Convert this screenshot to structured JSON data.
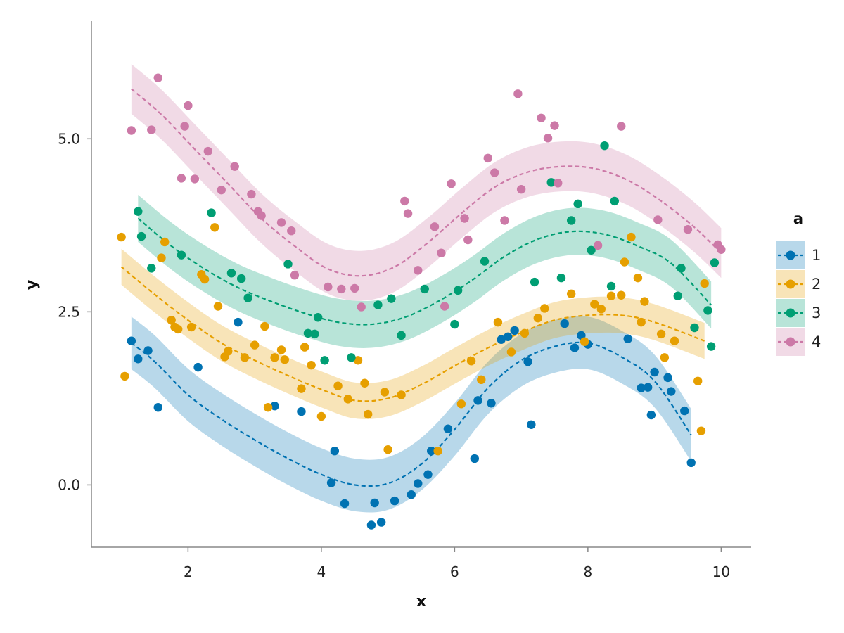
{
  "chart_data": {
    "type": "scatter",
    "xlabel": "x",
    "ylabel": "y",
    "xlim": [
      0.55,
      10.45
    ],
    "ylim": [
      -0.9,
      6.7
    ],
    "x_ticks": [
      2,
      4,
      6,
      8,
      10
    ],
    "x_tick_labels": [
      "2",
      "4",
      "6",
      "8",
      "10"
    ],
    "y_ticks": [
      0.0,
      2.5,
      5.0
    ],
    "y_tick_labels": [
      "0.0",
      "2.5",
      "5.0"
    ],
    "grid": false,
    "legend": {
      "title": "a",
      "position": "right"
    },
    "series": [
      {
        "name": "1",
        "color": "#0072B2",
        "points": [
          [
            1.15,
            2.08
          ],
          [
            1.25,
            1.82
          ],
          [
            1.4,
            1.94
          ],
          [
            1.55,
            1.12
          ],
          [
            2.15,
            1.7
          ],
          [
            2.75,
            2.35
          ],
          [
            3.3,
            1.14
          ],
          [
            3.7,
            1.06
          ],
          [
            4.15,
            0.03
          ],
          [
            4.2,
            0.49
          ],
          [
            4.35,
            -0.27
          ],
          [
            4.75,
            -0.58
          ],
          [
            4.8,
            -0.26
          ],
          [
            4.9,
            -0.54
          ],
          [
            5.1,
            -0.23
          ],
          [
            5.35,
            -0.14
          ],
          [
            5.45,
            0.02
          ],
          [
            5.6,
            0.15
          ],
          [
            5.65,
            0.49
          ],
          [
            5.9,
            0.81
          ],
          [
            6.3,
            0.38
          ],
          [
            6.35,
            1.22
          ],
          [
            6.55,
            1.18
          ],
          [
            6.7,
            2.1
          ],
          [
            6.8,
            2.14
          ],
          [
            6.9,
            2.23
          ],
          [
            7.1,
            1.78
          ],
          [
            7.15,
            0.87
          ],
          [
            7.65,
            2.33
          ],
          [
            7.8,
            1.98
          ],
          [
            7.9,
            2.16
          ],
          [
            8.0,
            2.03
          ],
          [
            8.6,
            2.11
          ],
          [
            8.8,
            1.4
          ],
          [
            8.9,
            1.41
          ],
          [
            8.95,
            1.01
          ],
          [
            9.0,
            1.63
          ],
          [
            9.2,
            1.55
          ],
          [
            9.25,
            1.35
          ],
          [
            9.45,
            1.07
          ],
          [
            9.55,
            0.32
          ]
        ],
        "fit": [
          [
            1.15,
            2.05
          ],
          [
            1.5,
            1.78
          ],
          [
            2.0,
            1.3
          ],
          [
            2.5,
            0.95
          ],
          [
            3.0,
            0.65
          ],
          [
            3.5,
            0.38
          ],
          [
            4.0,
            0.15
          ],
          [
            4.5,
            0.0
          ],
          [
            5.0,
            0.02
          ],
          [
            5.5,
            0.3
          ],
          [
            6.0,
            0.8
          ],
          [
            6.5,
            1.4
          ],
          [
            7.0,
            1.8
          ],
          [
            7.5,
            2.0
          ],
          [
            8.0,
            2.05
          ],
          [
            8.5,
            1.85
          ],
          [
            9.0,
            1.5
          ],
          [
            9.55,
            0.72
          ]
        ],
        "band_halfwidth": 0.38
      },
      {
        "name": "2",
        "color": "#E69F00",
        "points": [
          [
            1.0,
            3.58
          ],
          [
            1.05,
            1.57
          ],
          [
            1.65,
            3.51
          ],
          [
            1.6,
            3.28
          ],
          [
            1.75,
            2.38
          ],
          [
            1.8,
            2.28
          ],
          [
            1.85,
            2.25
          ],
          [
            2.05,
            2.28
          ],
          [
            2.2,
            3.04
          ],
          [
            2.25,
            2.97
          ],
          [
            2.4,
            3.72
          ],
          [
            2.45,
            2.58
          ],
          [
            2.55,
            1.85
          ],
          [
            2.6,
            1.93
          ],
          [
            2.85,
            1.84
          ],
          [
            3.0,
            2.02
          ],
          [
            3.15,
            2.29
          ],
          [
            3.2,
            1.12
          ],
          [
            3.3,
            1.84
          ],
          [
            3.4,
            1.95
          ],
          [
            3.45,
            1.81
          ],
          [
            3.7,
            1.39
          ],
          [
            3.75,
            1.99
          ],
          [
            3.85,
            1.73
          ],
          [
            4.0,
            0.99
          ],
          [
            4.25,
            1.43
          ],
          [
            4.4,
            1.24
          ],
          [
            4.55,
            1.8
          ],
          [
            4.65,
            1.47
          ],
          [
            4.7,
            1.02
          ],
          [
            4.95,
            1.34
          ],
          [
            5.0,
            0.51
          ],
          [
            5.2,
            1.3
          ],
          [
            5.75,
            0.49
          ],
          [
            6.1,
            1.17
          ],
          [
            6.25,
            1.79
          ],
          [
            6.4,
            1.52
          ],
          [
            6.65,
            2.35
          ],
          [
            6.85,
            1.92
          ],
          [
            7.05,
            2.19
          ],
          [
            7.25,
            2.41
          ],
          [
            7.35,
            2.55
          ],
          [
            7.75,
            2.76
          ],
          [
            7.95,
            2.07
          ],
          [
            8.1,
            2.61
          ],
          [
            8.2,
            2.54
          ],
          [
            8.35,
            2.73
          ],
          [
            8.5,
            2.74
          ],
          [
            8.55,
            3.22
          ],
          [
            8.65,
            3.58
          ],
          [
            8.75,
            2.99
          ],
          [
            8.8,
            2.35
          ],
          [
            8.85,
            2.65
          ],
          [
            9.1,
            2.18
          ],
          [
            9.15,
            1.84
          ],
          [
            9.3,
            2.08
          ],
          [
            9.65,
            1.5
          ],
          [
            9.7,
            0.78
          ],
          [
            9.75,
            2.91
          ]
        ],
        "fit": [
          [
            1.0,
            3.15
          ],
          [
            1.5,
            2.75
          ],
          [
            2.0,
            2.38
          ],
          [
            2.5,
            2.05
          ],
          [
            3.0,
            1.8
          ],
          [
            3.5,
            1.58
          ],
          [
            4.0,
            1.38
          ],
          [
            4.5,
            1.22
          ],
          [
            5.0,
            1.25
          ],
          [
            5.5,
            1.45
          ],
          [
            6.0,
            1.72
          ],
          [
            6.5,
            1.98
          ],
          [
            7.0,
            2.2
          ],
          [
            7.5,
            2.38
          ],
          [
            8.0,
            2.45
          ],
          [
            8.5,
            2.45
          ],
          [
            9.0,
            2.35
          ],
          [
            9.75,
            2.08
          ]
        ],
        "band_halfwidth": 0.26
      },
      {
        "name": "3",
        "color": "#009E73",
        "points": [
          [
            1.25,
            3.95
          ],
          [
            1.3,
            3.59
          ],
          [
            1.45,
            3.13
          ],
          [
            1.9,
            3.32
          ],
          [
            2.35,
            3.93
          ],
          [
            2.65,
            3.06
          ],
          [
            2.8,
            2.98
          ],
          [
            2.9,
            2.7
          ],
          [
            3.5,
            3.19
          ],
          [
            3.8,
            2.19
          ],
          [
            3.9,
            2.18
          ],
          [
            3.95,
            2.42
          ],
          [
            4.05,
            1.8
          ],
          [
            4.45,
            1.84
          ],
          [
            4.85,
            2.6
          ],
          [
            5.05,
            2.69
          ],
          [
            5.2,
            2.16
          ],
          [
            5.55,
            2.83
          ],
          [
            6.0,
            2.32
          ],
          [
            6.05,
            2.81
          ],
          [
            6.45,
            3.23
          ],
          [
            7.2,
            2.93
          ],
          [
            7.45,
            4.37
          ],
          [
            7.6,
            2.99
          ],
          [
            7.75,
            3.82
          ],
          [
            7.85,
            4.06
          ],
          [
            8.05,
            3.39
          ],
          [
            8.25,
            4.9
          ],
          [
            8.35,
            2.87
          ],
          [
            8.4,
            4.1
          ],
          [
            9.35,
            2.73
          ],
          [
            9.4,
            3.13
          ],
          [
            9.6,
            2.27
          ],
          [
            9.8,
            2.52
          ],
          [
            9.85,
            2.0
          ],
          [
            9.9,
            3.21
          ]
        ],
        "fit": [
          [
            1.25,
            3.85
          ],
          [
            1.75,
            3.45
          ],
          [
            2.25,
            3.12
          ],
          [
            2.75,
            2.85
          ],
          [
            3.25,
            2.65
          ],
          [
            3.75,
            2.48
          ],
          [
            4.25,
            2.35
          ],
          [
            4.75,
            2.32
          ],
          [
            5.25,
            2.42
          ],
          [
            5.75,
            2.65
          ],
          [
            6.25,
            2.95
          ],
          [
            6.75,
            3.3
          ],
          [
            7.25,
            3.55
          ],
          [
            7.75,
            3.66
          ],
          [
            8.25,
            3.62
          ],
          [
            8.75,
            3.45
          ],
          [
            9.25,
            3.2
          ],
          [
            9.85,
            2.6
          ]
        ],
        "band_halfwidth": 0.34
      },
      {
        "name": "4",
        "color": "#CC79A7",
        "points": [
          [
            1.15,
            5.12
          ],
          [
            1.55,
            5.88
          ],
          [
            1.45,
            5.13
          ],
          [
            1.9,
            4.43
          ],
          [
            1.95,
            5.18
          ],
          [
            2.0,
            5.48
          ],
          [
            2.1,
            4.42
          ],
          [
            2.3,
            4.82
          ],
          [
            2.5,
            4.26
          ],
          [
            2.7,
            4.6
          ],
          [
            2.95,
            4.2
          ],
          [
            3.05,
            3.95
          ],
          [
            3.1,
            3.89
          ],
          [
            3.4,
            3.79
          ],
          [
            3.55,
            3.67
          ],
          [
            3.6,
            3.03
          ],
          [
            4.1,
            2.86
          ],
          [
            4.3,
            2.83
          ],
          [
            4.5,
            2.84
          ],
          [
            4.6,
            2.57
          ],
          [
            5.25,
            4.1
          ],
          [
            5.3,
            3.92
          ],
          [
            5.45,
            3.1
          ],
          [
            5.7,
            3.73
          ],
          [
            5.8,
            3.35
          ],
          [
            5.85,
            2.58
          ],
          [
            5.95,
            4.35
          ],
          [
            6.15,
            3.85
          ],
          [
            6.2,
            3.54
          ],
          [
            6.5,
            4.72
          ],
          [
            6.6,
            4.51
          ],
          [
            6.75,
            3.82
          ],
          [
            6.95,
            5.65
          ],
          [
            7.0,
            4.27
          ],
          [
            7.3,
            5.3
          ],
          [
            7.4,
            5.01
          ],
          [
            7.5,
            5.19
          ],
          [
            7.55,
            4.36
          ],
          [
            8.15,
            3.46
          ],
          [
            8.5,
            5.18
          ],
          [
            9.05,
            3.83
          ],
          [
            9.5,
            3.69
          ],
          [
            9.95,
            3.47
          ],
          [
            10.0,
            3.4
          ]
        ],
        "fit": [
          [
            1.15,
            5.72
          ],
          [
            1.6,
            5.35
          ],
          [
            2.1,
            4.85
          ],
          [
            2.6,
            4.35
          ],
          [
            3.1,
            3.85
          ],
          [
            3.6,
            3.45
          ],
          [
            4.1,
            3.12
          ],
          [
            4.6,
            3.02
          ],
          [
            5.1,
            3.15
          ],
          [
            5.6,
            3.5
          ],
          [
            6.1,
            3.92
          ],
          [
            6.6,
            4.3
          ],
          [
            7.1,
            4.52
          ],
          [
            7.6,
            4.6
          ],
          [
            8.1,
            4.57
          ],
          [
            8.6,
            4.4
          ],
          [
            9.1,
            4.1
          ],
          [
            9.6,
            3.72
          ],
          [
            10.0,
            3.35
          ]
        ],
        "band_halfwidth": 0.36
      }
    ]
  }
}
